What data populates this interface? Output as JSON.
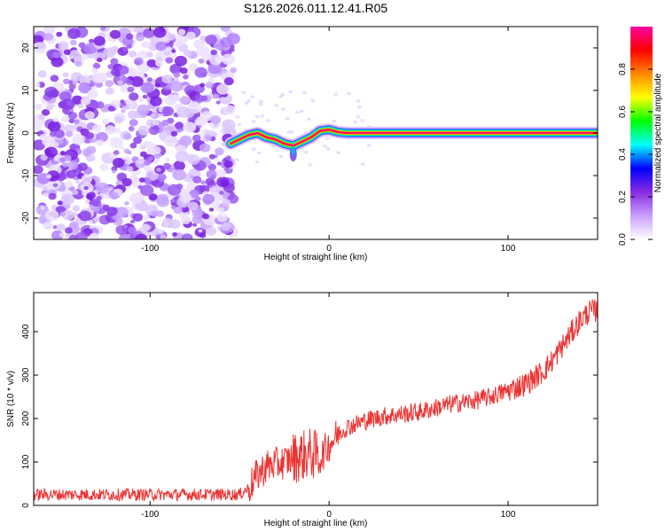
{
  "title": "S126.2026.011.12.41.R05",
  "chart_data": [
    {
      "type": "heatmap",
      "name": "spectrogram",
      "xlabel": "Height of straight line (km)",
      "ylabel": "Frequency (Hz)",
      "xlim": [
        -165,
        150
      ],
      "ylim": [
        -25,
        25
      ],
      "xticks": [
        -100,
        0,
        100
      ],
      "yticks": [
        -20,
        -10,
        0,
        10,
        20
      ],
      "noise_region_x": [
        -165,
        -55
      ],
      "ridge": {
        "x": [
          -55,
          -50,
          -45,
          -40,
          -35,
          -30,
          -25,
          -20,
          -15,
          -10,
          -5,
          0,
          5,
          10,
          20,
          40,
          60,
          80,
          100,
          120,
          150
        ],
        "freq": [
          -2.5,
          -1.5,
          -0.5,
          0,
          -1,
          -1.5,
          -2.5,
          -3,
          -2,
          -1,
          0.5,
          0.8,
          0.2,
          0,
          0,
          0,
          0,
          0,
          0,
          0,
          0
        ]
      },
      "colorbar": {
        "label": "Normalized spectral amplitude",
        "range": [
          0,
          1
        ],
        "ticks": [
          0.0,
          0.2,
          0.4,
          0.6,
          0.8
        ],
        "tick_labels": [
          "0.0",
          "0.2",
          "0.4",
          "0.6",
          "0.8"
        ],
        "colors": [
          "#ffffff",
          "#c8a0ff",
          "#8a2be2",
          "#0000ff",
          "#00ffff",
          "#00ff00",
          "#ffff00",
          "#ff8800",
          "#ff0000",
          "#ff00a0"
        ]
      }
    },
    {
      "type": "line",
      "name": "snr",
      "xlabel": "Height of straight line (km)",
      "ylabel": "SNR (10 * v/v)",
      "xlim": [
        -165,
        150
      ],
      "ylim": [
        0,
        490
      ],
      "xticks": [
        -100,
        0,
        100
      ],
      "yticks": [
        0,
        100,
        200,
        300,
        400
      ],
      "series": [
        {
          "name": "SNR",
          "color": "#ee3333",
          "x": [
            -165,
            -140,
            -120,
            -100,
            -80,
            -60,
            -50,
            -45,
            -40,
            -35,
            -30,
            -25,
            -20,
            -15,
            -10,
            -5,
            0,
            5,
            10,
            20,
            30,
            40,
            50,
            60,
            70,
            80,
            90,
            100,
            110,
            115,
            120,
            125,
            130,
            135,
            140,
            145,
            150
          ],
          "values": [
            25,
            25,
            25,
            25,
            25,
            25,
            25,
            40,
            70,
            90,
            95,
            100,
            110,
            115,
            120,
            110,
            140,
            165,
            180,
            195,
            205,
            210,
            215,
            225,
            235,
            240,
            250,
            265,
            280,
            295,
            310,
            335,
            365,
            395,
            425,
            445,
            450
          ]
        }
      ]
    }
  ]
}
